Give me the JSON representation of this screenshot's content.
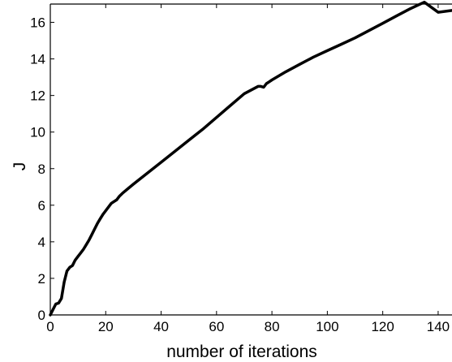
{
  "chart_data": {
    "type": "line",
    "title": "",
    "xlabel": "number of iterations",
    "ylabel": "J",
    "xlim": [
      0,
      145
    ],
    "ylim": [
      0,
      17
    ],
    "grid": false,
    "xticks": [
      0,
      20,
      40,
      60,
      80,
      100,
      120,
      140
    ],
    "yticks": [
      0,
      2,
      4,
      6,
      8,
      10,
      12,
      14,
      16
    ],
    "series": [
      {
        "color": "#000000",
        "x": [
          0,
          1,
          2,
          3,
          4,
          5,
          6,
          7,
          8,
          9,
          10,
          11,
          12,
          13,
          14,
          15,
          16,
          17,
          18,
          19,
          20,
          21,
          22,
          23,
          24,
          25,
          26,
          28,
          30,
          35,
          40,
          45,
          50,
          55,
          60,
          65,
          70,
          75,
          76,
          77,
          78,
          79,
          80,
          85,
          90,
          95,
          100,
          105,
          110,
          115,
          120,
          125,
          130,
          135,
          140,
          145
        ],
        "y": [
          0,
          0.3,
          0.6,
          0.65,
          0.9,
          1.8,
          2.4,
          2.6,
          2.7,
          3.0,
          3.2,
          3.4,
          3.6,
          3.85,
          4.1,
          4.4,
          4.7,
          5.0,
          5.25,
          5.5,
          5.7,
          5.9,
          6.1,
          6.2,
          6.3,
          6.5,
          6.65,
          6.9,
          7.15,
          7.75,
          8.35,
          8.95,
          9.55,
          10.15,
          10.8,
          11.45,
          12.1,
          12.5,
          12.5,
          12.45,
          12.65,
          12.75,
          12.85,
          13.3,
          13.7,
          14.1,
          14.45,
          14.8,
          15.15,
          15.55,
          15.95,
          16.35,
          16.75,
          17.1,
          16.55,
          16.65
        ]
      }
    ]
  }
}
